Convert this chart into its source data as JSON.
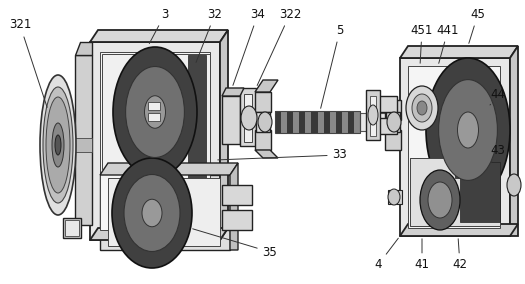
{
  "background_color": "#ffffff",
  "fig_width": 5.25,
  "fig_height": 2.84,
  "dpi": 100,
  "label_fontsize": 8.5
}
